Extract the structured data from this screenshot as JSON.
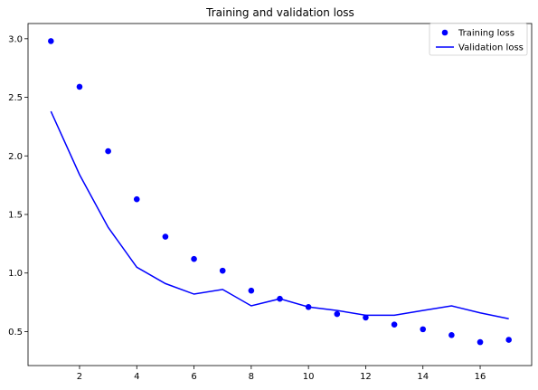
{
  "chart_data": {
    "type": "line",
    "title": "Training and validation loss",
    "xlabel": "",
    "ylabel": "",
    "x": [
      1,
      2,
      3,
      4,
      5,
      6,
      7,
      8,
      9,
      10,
      11,
      12,
      13,
      14,
      15,
      16,
      17
    ],
    "series": [
      {
        "name": "Training loss",
        "style": "markers",
        "color": "#0000ff",
        "values": [
          2.98,
          2.59,
          2.04,
          1.63,
          1.31,
          1.12,
          1.02,
          0.85,
          0.78,
          0.71,
          0.65,
          0.62,
          0.56,
          0.52,
          0.47,
          0.41,
          0.43
        ]
      },
      {
        "name": "Validation loss",
        "style": "line",
        "color": "#0000ff",
        "values": [
          2.38,
          1.84,
          1.39,
          1.05,
          0.91,
          0.82,
          0.86,
          0.72,
          0.78,
          0.71,
          0.68,
          0.64,
          0.64,
          0.68,
          0.72,
          0.66,
          0.61
        ]
      }
    ],
    "xlim": [
      0.2,
      17.8
    ],
    "ylim": [
      0.21,
      3.13
    ],
    "xticks": [
      2,
      4,
      6,
      8,
      10,
      12,
      14,
      16
    ],
    "yticks": [
      0.5,
      1.0,
      1.5,
      2.0,
      2.5,
      3.0
    ],
    "ytick_labels": [
      "0.5",
      "1.0",
      "1.5",
      "2.0",
      "2.5",
      "3.0"
    ],
    "grid": false,
    "legend": "top-right"
  }
}
